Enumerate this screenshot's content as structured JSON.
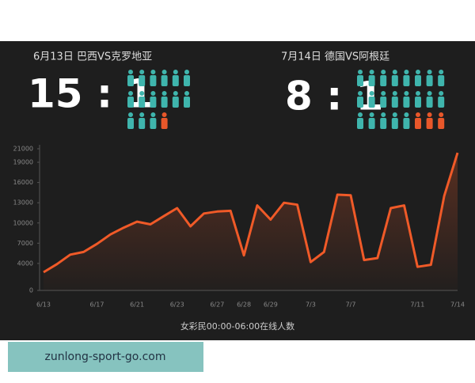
{
  "chart_data": {
    "type": "line",
    "matches": [
      {
        "title": "6月13日 巴西VS克罗地亚",
        "score": "15 : 1"
      },
      {
        "title": "7月14日 德国VS阿根廷",
        "score": "8 : 1"
      }
    ],
    "x_label": "女彩民00:00-06:00在线人数",
    "categories": [
      "6/13",
      null,
      null,
      null,
      "6/17",
      null,
      null,
      "6/21",
      null,
      null,
      "6/23",
      null,
      null,
      "6/27",
      null,
      "6/28",
      null,
      "6/29",
      null,
      null,
      "7/3",
      null,
      null,
      "7/7",
      null,
      null,
      null,
      null,
      "7/11",
      null,
      null,
      "7/14"
    ],
    "values": [
      2700,
      3900,
      5300,
      5700,
      6900,
      8300,
      9300,
      10200,
      9800,
      11000,
      12200,
      9500,
      11400,
      11700,
      11800,
      5200,
      12600,
      10500,
      13000,
      12700,
      4200,
      5700,
      14200,
      14100,
      4500,
      4800,
      12200,
      12600,
      3500,
      3800,
      14000,
      20400
    ],
    "color": "#f05a28",
    "ylim": [
      0,
      21000
    ],
    "yticks": [
      0,
      4000,
      7000,
      10000,
      13000,
      16000,
      19000,
      21000
    ],
    "grid": false
  },
  "watermark": "zunlong-sport-go.com"
}
